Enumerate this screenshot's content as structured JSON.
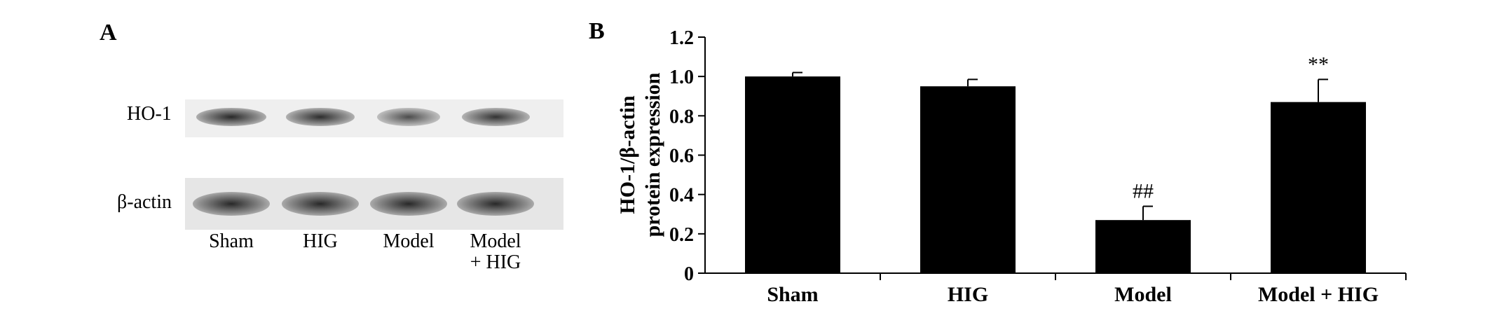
{
  "panels": {
    "a": "A",
    "b": "B"
  },
  "blot": {
    "rows": [
      "HO-1",
      "β-actin"
    ],
    "lanes": [
      "Sham",
      "HIG",
      "Model",
      "Model\n+ HIG"
    ],
    "ho1_intensity": [
      1.0,
      0.95,
      0.6,
      0.88
    ],
    "actin_intensity": [
      1.0,
      1.0,
      1.0,
      1.0
    ]
  },
  "chart_data": {
    "type": "bar",
    "categories": [
      "Sham",
      "HIG",
      "Model",
      "Model + HIG"
    ],
    "values": [
      1.0,
      0.95,
      0.27,
      0.87
    ],
    "errors": [
      0.02,
      0.035,
      0.07,
      0.115
    ],
    "annotations": [
      "",
      "",
      "##",
      "**"
    ],
    "ylabel": "HO-1/β-actin\nprotein expression",
    "xlabel": "",
    "ylim": [
      0,
      1.2
    ],
    "yticks": [
      0,
      0.2,
      0.4,
      0.6,
      0.8,
      1.0,
      1.2
    ],
    "ytick_labels": [
      "0",
      "0.2",
      "0.4",
      "0.6",
      "0.8",
      "1.0",
      "1.2"
    ],
    "bar_color": "#000000",
    "grid": false,
    "legend": "none"
  }
}
